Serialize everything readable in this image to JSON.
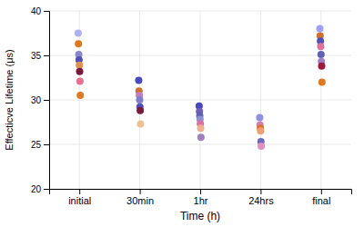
{
  "chart_data": {
    "type": "scatter",
    "xlabel": "Time (h)",
    "ylabel": "Effecticve Lifetime (μs)",
    "categories": [
      "initial",
      "30min",
      "1hr",
      "24hrs",
      "final"
    ],
    "values": [
      [
        37.5,
        36.3,
        35.1,
        34.5,
        33.9,
        33.2,
        32.1,
        30.5
      ],
      [
        32.2,
        31.0,
        30.5,
        30.0,
        29.2,
        28.8,
        27.3
      ],
      [
        29.3,
        28.7,
        28.2,
        27.8,
        27.3,
        26.8,
        25.8
      ],
      [
        28.0,
        27.2,
        26.8,
        26.5,
        25.3,
        24.8
      ],
      [
        38.0,
        37.2,
        36.6,
        36.0,
        35.1,
        34.3,
        33.8,
        32.0
      ]
    ],
    "colors": [
      [
        "#b0b0f0",
        "#e07820",
        "#8888cc",
        "#5050b8",
        "#e09050",
        "#7a1a3a",
        "#e87090",
        "#e07820"
      ],
      [
        "#4848c0",
        "#d07030",
        "#c080c0",
        "#8080c8",
        "#5050b8",
        "#7a1a3a",
        "#f0c090"
      ],
      [
        "#4848c0",
        "#7060b8",
        "#6060b0",
        "#9090d0",
        "#d870a0",
        "#f0b090",
        "#a080c0"
      ],
      [
        "#9090e0",
        "#d080b0",
        "#e07030",
        "#f0a070",
        "#6a6ac0",
        "#e090c0"
      ],
      [
        "#a0a0f0",
        "#d07030",
        "#5050b8",
        "#e070a0",
        "#6060b8",
        "#a080c8",
        "#9a1a3a",
        "#e07820"
      ]
    ],
    "ylim": [
      20,
      40
    ],
    "yticks": [
      20,
      25,
      30,
      35,
      40
    ],
    "grid": true
  }
}
